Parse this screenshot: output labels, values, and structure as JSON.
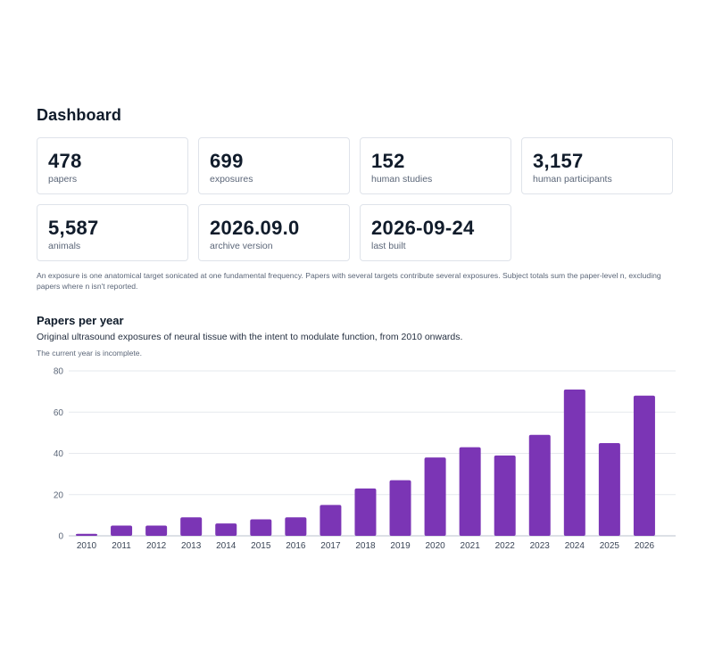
{
  "page": {
    "title": "Dashboard",
    "stats": [
      {
        "value": "478",
        "label": "papers"
      },
      {
        "value": "699",
        "label": "exposures"
      },
      {
        "value": "152",
        "label": "human studies"
      },
      {
        "value": "3,157",
        "label": "human participants"
      },
      {
        "value": "5,587",
        "label": "animals"
      },
      {
        "value": "2026.09.0",
        "label": "archive version"
      },
      {
        "value": "2026-09-24",
        "label": "last built"
      }
    ],
    "note": "An exposure is one anatomical target sonicated at one fundamental frequency. Papers with several targets contribute several exposures. Subject totals sum the paper-level n, excluding papers where n isn't reported."
  },
  "chart_section": {
    "title": "Papers per year",
    "subtitle": "Original ultrasound exposures of neural tissue with the intent to modulate function, from 2010 onwards.",
    "note": "The current year is incomplete."
  },
  "chart_data": {
    "type": "bar",
    "title": "Papers per year",
    "xlabel": "",
    "ylabel": "",
    "categories": [
      "2010",
      "2011",
      "2012",
      "2013",
      "2014",
      "2015",
      "2016",
      "2017",
      "2018",
      "2019",
      "2020",
      "2021",
      "2022",
      "2023",
      "2024",
      "2025",
      "2026"
    ],
    "values": [
      1,
      5,
      5,
      9,
      6,
      8,
      9,
      15,
      23,
      27,
      38,
      43,
      39,
      49,
      71,
      45,
      68
    ],
    "ylim": [
      0,
      80
    ],
    "yticks": [
      0,
      20,
      40,
      60,
      80
    ],
    "grid": true,
    "bar_color": "#7b35b5"
  }
}
